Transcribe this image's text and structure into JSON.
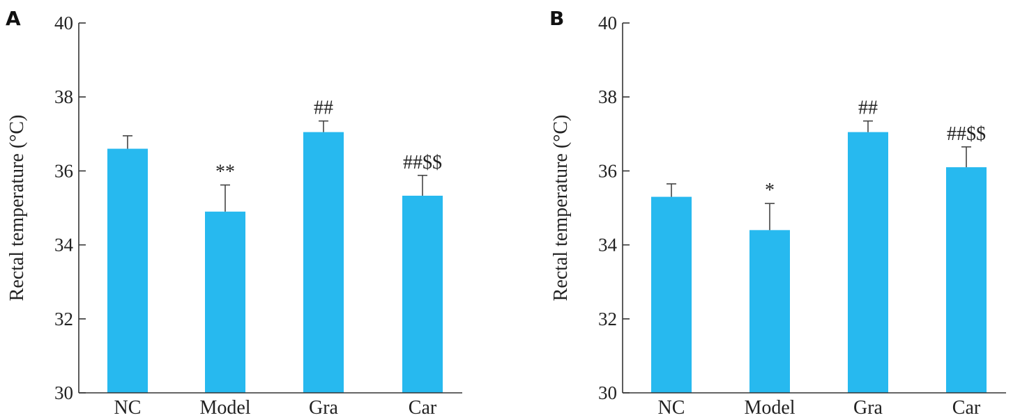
{
  "chart_data": [
    {
      "type": "bar",
      "panel": "A",
      "ylabel": "Rectal temperature (°C)",
      "xlabel": "",
      "ylim": [
        30,
        40
      ],
      "yticks": [
        30,
        32,
        34,
        36,
        38,
        40
      ],
      "categories": [
        "NC",
        "Model",
        "Gra",
        "Car"
      ],
      "values": [
        36.6,
        34.9,
        37.05,
        35.33
      ],
      "errors": [
        0.35,
        0.72,
        0.3,
        0.55
      ],
      "annotations": [
        "",
        "**",
        "##",
        "##$$"
      ],
      "color": "#27B9EF"
    },
    {
      "type": "bar",
      "panel": "B",
      "ylabel": "Rectal temperature (°C)",
      "xlabel": "",
      "ylim": [
        30,
        40
      ],
      "yticks": [
        30,
        32,
        34,
        36,
        38,
        40
      ],
      "categories": [
        "NC",
        "Model",
        "Gra",
        "Car"
      ],
      "values": [
        35.3,
        34.4,
        37.05,
        36.1
      ],
      "errors": [
        0.35,
        0.72,
        0.3,
        0.55
      ],
      "annotations": [
        "",
        "*",
        "##",
        "##$$"
      ],
      "color": "#27B9EF"
    }
  ]
}
